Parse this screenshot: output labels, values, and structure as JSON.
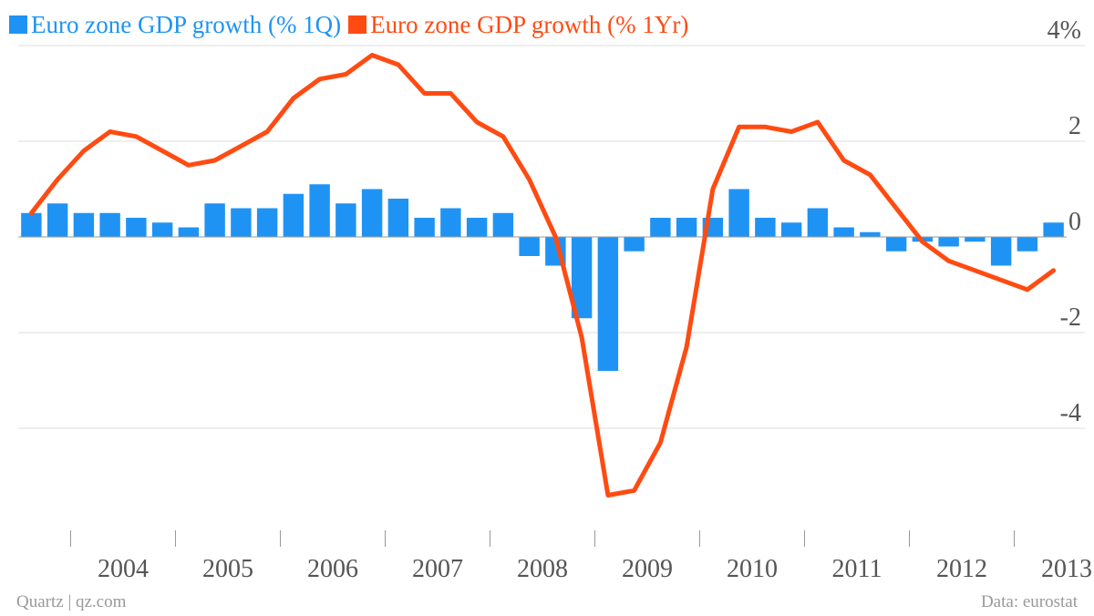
{
  "colors": {
    "quarterly": "#1f93f4",
    "annual": "#ff4b12",
    "grid": "#dddddd",
    "axis_text": "#555555"
  },
  "footer": {
    "source_left": "Quartz | qz.com",
    "source_right": "Data: eurostat"
  },
  "chart_data": {
    "type": "bar",
    "title": "",
    "xlabel": "",
    "ylabel": "",
    "ylim": [
      -6.3,
      4
    ],
    "y_ticks": [
      "4%",
      "2",
      "0",
      "-2",
      "-4"
    ],
    "y_tick_values": [
      4,
      2,
      0,
      -2,
      -4
    ],
    "x_ticks": [
      "2004",
      "2005",
      "2006",
      "2007",
      "2008",
      "2009",
      "2010",
      "2011",
      "2012",
      "2013"
    ],
    "grid": true,
    "legend_position": "top-left",
    "categories": [
      "2003Q3",
      "2003Q4",
      "2004Q1",
      "2004Q2",
      "2004Q3",
      "2004Q4",
      "2005Q1",
      "2005Q2",
      "2005Q3",
      "2005Q4",
      "2006Q1",
      "2006Q2",
      "2006Q3",
      "2006Q4",
      "2007Q1",
      "2007Q2",
      "2007Q3",
      "2007Q4",
      "2008Q1",
      "2008Q2",
      "2008Q3",
      "2008Q4",
      "2009Q1",
      "2009Q2",
      "2009Q3",
      "2009Q4",
      "2010Q1",
      "2010Q2",
      "2010Q3",
      "2010Q4",
      "2011Q1",
      "2011Q2",
      "2011Q3",
      "2011Q4",
      "2012Q1",
      "2012Q2",
      "2012Q3",
      "2012Q4",
      "2013Q1",
      "2013Q2"
    ],
    "series": [
      {
        "name": "Euro zone GDP growth (% 1Q)",
        "type": "bar",
        "values": [
          0.5,
          0.7,
          0.5,
          0.5,
          0.4,
          0.3,
          0.2,
          0.7,
          0.6,
          0.6,
          0.9,
          1.1,
          0.7,
          1.0,
          0.8,
          0.4,
          0.6,
          0.4,
          0.5,
          -0.4,
          -0.6,
          -1.7,
          -2.8,
          -0.3,
          0.4,
          0.4,
          0.4,
          1.0,
          0.4,
          0.3,
          0.6,
          0.2,
          0.1,
          -0.3,
          -0.1,
          -0.2,
          -0.1,
          -0.6,
          -0.3,
          0.3
        ]
      },
      {
        "name": "Euro zone GDP growth (% 1Yr)",
        "type": "line",
        "values": [
          0.5,
          1.2,
          1.8,
          2.2,
          2.1,
          1.8,
          1.5,
          1.6,
          1.9,
          2.2,
          2.9,
          3.3,
          3.4,
          3.8,
          3.6,
          3.0,
          3.0,
          2.4,
          2.1,
          1.2,
          0.0,
          -2.1,
          -5.4,
          -5.3,
          -4.3,
          -2.3,
          1.0,
          2.3,
          2.3,
          2.2,
          2.4,
          1.6,
          1.3,
          0.6,
          -0.1,
          -0.5,
          -0.7,
          -0.9,
          -1.1,
          -0.7
        ]
      }
    ]
  }
}
